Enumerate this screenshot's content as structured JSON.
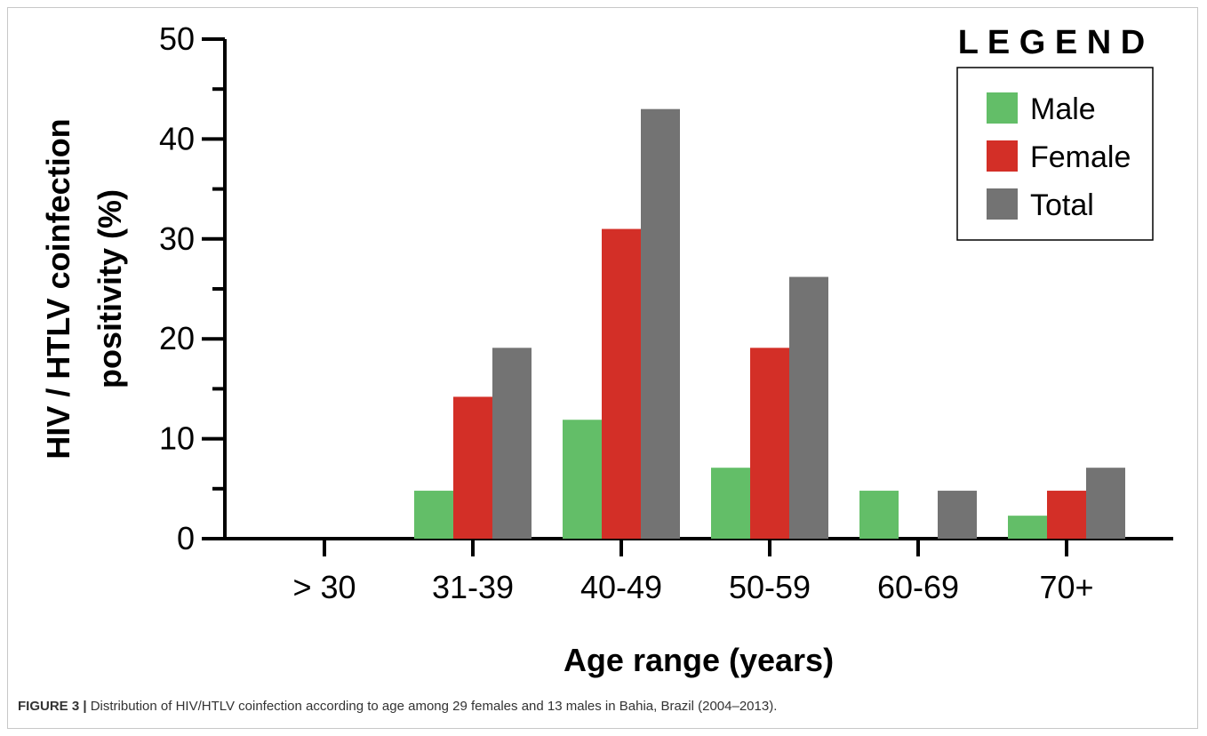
{
  "chart_data": {
    "type": "bar",
    "categories": [
      "> 30",
      "31-39",
      "40-49",
      "50-59",
      "60-69",
      "70+"
    ],
    "series": [
      {
        "name": "Male",
        "values": [
          0,
          4.8,
          11.9,
          7.1,
          4.8,
          2.3
        ]
      },
      {
        "name": "Female",
        "values": [
          0,
          14.2,
          31.0,
          19.1,
          0,
          4.8
        ]
      },
      {
        "name": "Total",
        "values": [
          0,
          19.1,
          43.0,
          26.2,
          4.8,
          7.1
        ]
      }
    ],
    "xlabel": "Age range (years)",
    "ylabel_lines": [
      "HIV / HTLV coinfection",
      "positivity (%)"
    ],
    "ylim": [
      0,
      50
    ],
    "yticks": [
      0,
      10,
      20,
      30,
      40,
      50
    ],
    "legend": {
      "title": "L E G E N D",
      "placement": "top-right"
    },
    "colors": {
      "Male": "#63be68",
      "Female": "#d32f27",
      "Total": "#737373"
    },
    "grid": false
  },
  "caption": {
    "label": "FIGURE 3 |",
    "text": " Distribution of HIV/HTLV coinfection according to age among 29 females and 13 males in Bahia, Brazil (2004–2013)."
  }
}
